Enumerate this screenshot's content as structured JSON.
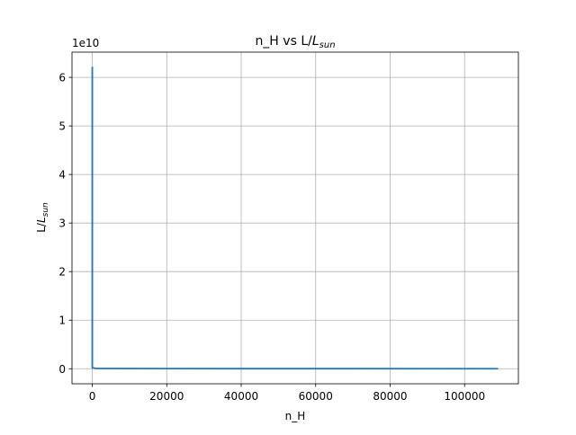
{
  "chart_data": {
    "type": "line",
    "title_text": "n_H vs L/",
    "title_italic": "L",
    "title_sub": "sun",
    "xlabel": "n_H",
    "ylabel_text": "L/",
    "ylabel_italic": "L",
    "ylabel_sub": "sun",
    "y_multiplier": "1e10",
    "xlim": [
      -5450,
      114450
    ],
    "ylim": [
      -0.31,
      6.52
    ],
    "x_ticks": [
      0,
      20000,
      40000,
      60000,
      80000,
      100000
    ],
    "x_tick_labels": [
      "0",
      "20000",
      "40000",
      "60000",
      "80000",
      "100000"
    ],
    "y_ticks": [
      0,
      1,
      2,
      3,
      4,
      5,
      6
    ],
    "y_tick_labels": [
      "0",
      "1",
      "2",
      "3",
      "4",
      "5",
      "6"
    ],
    "grid": true,
    "line_color": "#1f77b4",
    "series": [
      {
        "points": [
          [
            0,
            6.22
          ],
          [
            0,
            5.0
          ],
          [
            0,
            2.5
          ],
          [
            0,
            0.5
          ],
          [
            0,
            0.02
          ],
          [
            1000,
            0.005
          ],
          [
            20000,
            0.002
          ],
          [
            60000,
            0.001
          ],
          [
            109000,
            0.0005
          ]
        ]
      }
    ]
  }
}
